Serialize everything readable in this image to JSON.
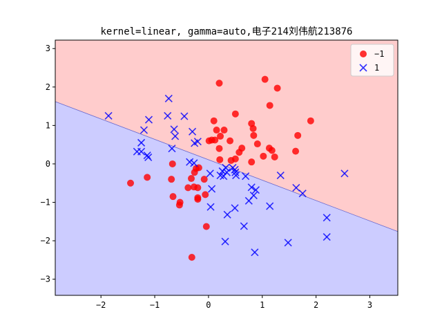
{
  "chart_data": {
    "type": "scatter",
    "title": "kernel=linear, gamma=auto,电子214刘伟航213876",
    "xlabel": "",
    "ylabel": "",
    "xlim": [
      -2.85,
      3.52
    ],
    "ylim": [
      -3.42,
      3.22
    ],
    "xticks": [
      -2,
      -1,
      0,
      1,
      2,
      3
    ],
    "yticks": [
      -3,
      -2,
      -1,
      0,
      1,
      2,
      3
    ],
    "grid": false,
    "legend_position": "top-right",
    "decision_boundary": {
      "points": [
        [
          -2.85,
          1.62
        ],
        [
          3.52,
          -1.76
        ]
      ],
      "region_above_class": "-1",
      "region_below_class": "1",
      "color_above": "#ffcccc",
      "color_below": "#ccccff",
      "line_color": "#6666cc"
    },
    "series": [
      {
        "name": "-1",
        "marker": "circle",
        "color": "#ff0000",
        "points": [
          [
            0.2,
            2.1
          ],
          [
            1.05,
            2.2
          ],
          [
            1.28,
            1.97
          ],
          [
            0.5,
            1.3
          ],
          [
            1.14,
            1.52
          ],
          [
            1.9,
            1.12
          ],
          [
            0.1,
            1.12
          ],
          [
            0.8,
            1.05
          ],
          [
            0.15,
            0.88
          ],
          [
            0.29,
            0.88
          ],
          [
            0.83,
            0.92
          ],
          [
            1.66,
            0.74
          ],
          [
            0.22,
            0.72
          ],
          [
            0.84,
            0.74
          ],
          [
            0.06,
            0.62
          ],
          [
            0.01,
            0.6
          ],
          [
            0.4,
            0.6
          ],
          [
            0.12,
            0.62
          ],
          [
            0.91,
            0.52
          ],
          [
            1.13,
            0.41
          ],
          [
            0.2,
            0.4
          ],
          [
            0.62,
            0.41
          ],
          [
            1.18,
            0.35
          ],
          [
            1.62,
            0.33
          ],
          [
            0.57,
            0.3
          ],
          [
            1.02,
            0.2
          ],
          [
            1.23,
            0.18
          ],
          [
            0.5,
            0.13
          ],
          [
            0.21,
            0.11
          ],
          [
            0.42,
            0.09
          ],
          [
            0.8,
            0.05
          ],
          [
            -0.67,
            0.0
          ],
          [
            -0.18,
            -0.1
          ],
          [
            -0.23,
            -0.12
          ],
          [
            -0.26,
            -0.22
          ],
          [
            -0.08,
            -0.4
          ],
          [
            -0.69,
            -0.4
          ],
          [
            -0.32,
            -0.38
          ],
          [
            -1.45,
            -0.5
          ],
          [
            -1.14,
            -0.35
          ],
          [
            -0.2,
            -0.62
          ],
          [
            -0.27,
            -0.6
          ],
          [
            -0.38,
            -0.62
          ],
          [
            -0.06,
            -0.8
          ],
          [
            -0.66,
            -0.85
          ],
          [
            -0.2,
            -0.88
          ],
          [
            -0.2,
            -0.92
          ],
          [
            -0.53,
            -1.0
          ],
          [
            -0.54,
            -1.07
          ],
          [
            -0.04,
            -1.63
          ],
          [
            -0.31,
            -2.43
          ]
        ]
      },
      {
        "name": "1",
        "marker": "x",
        "color": "#0000ff",
        "points": [
          [
            -0.74,
            1.7
          ],
          [
            -1.86,
            1.25
          ],
          [
            -0.76,
            1.25
          ],
          [
            -0.45,
            1.24
          ],
          [
            -1.11,
            1.15
          ],
          [
            -0.64,
            0.9
          ],
          [
            -1.2,
            0.88
          ],
          [
            -0.3,
            0.84
          ],
          [
            -0.62,
            0.72
          ],
          [
            -0.2,
            0.58
          ],
          [
            -0.26,
            0.54
          ],
          [
            -1.25,
            0.55
          ],
          [
            -0.68,
            0.4
          ],
          [
            -1.33,
            0.32
          ],
          [
            -1.25,
            0.32
          ],
          [
            -1.14,
            0.22
          ],
          [
            -1.12,
            0.17
          ],
          [
            -0.35,
            0.05
          ],
          [
            -0.27,
            0.02
          ],
          [
            0.32,
            -0.1
          ],
          [
            0.45,
            -0.1
          ],
          [
            0.49,
            -0.15
          ],
          [
            0.26,
            -0.19
          ],
          [
            0.34,
            -0.22
          ],
          [
            0.03,
            -0.25
          ],
          [
            0.5,
            -0.22
          ],
          [
            0.28,
            -0.32
          ],
          [
            0.22,
            -0.3
          ],
          [
            0.51,
            -0.3
          ],
          [
            0.69,
            -0.32
          ],
          [
            1.34,
            -0.3
          ],
          [
            2.53,
            -0.25
          ],
          [
            0.8,
            -0.61
          ],
          [
            0.88,
            -0.68
          ],
          [
            1.63,
            -0.62
          ],
          [
            0.06,
            -0.65
          ],
          [
            1.75,
            -0.77
          ],
          [
            0.84,
            -0.82
          ],
          [
            0.75,
            -0.96
          ],
          [
            0.49,
            -1.15
          ],
          [
            1.14,
            -1.1
          ],
          [
            0.04,
            -1.12
          ],
          [
            0.35,
            -1.32
          ],
          [
            2.2,
            -1.4
          ],
          [
            0.66,
            -1.62
          ],
          [
            2.2,
            -1.9
          ],
          [
            0.31,
            -2.02
          ],
          [
            1.48,
            -2.05
          ],
          [
            0.86,
            -2.3
          ]
        ]
      }
    ]
  }
}
